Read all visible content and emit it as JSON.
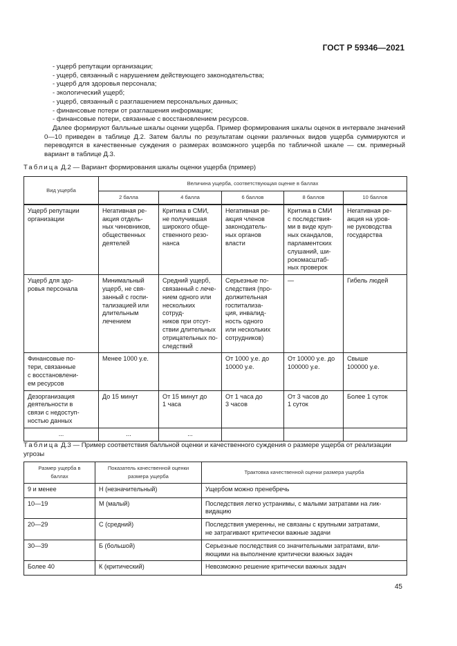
{
  "header": {
    "doc_id": "ГОСТ Р 59346—2021"
  },
  "bullets": [
    "- ущерб репутации организации;",
    "- ущерб, связанный с нарушением действующего законодательства;",
    "- ущерб для здоровья персонала;",
    "- экологический ущерб;",
    "- ущерб, связанный с разглашением персональных данных;",
    "- финансовые потери от разглашения информации;",
    "- финансовые потери, связанные с восстановлением ресурсов."
  ],
  "paragraph": "Далее формируют балльные шкалы оценки ущерба. Пример формирования шкалы оценок в интервале значений 0—10 приведен в таблице Д.2. Затем баллы по результатам оценки различных видов ущерба суммируются и переводятся в качественные суждения о размерах возможного ущерба по табличной шкале — см. примерный вариант в таблице Д.3.",
  "table_d2": {
    "caption_label": "Таблица",
    "caption_text": " Д.2 — Вариант формирования шкалы оценки ущерба (пример)",
    "col_type": "Вид ущерба",
    "group_header": "Величина ущерба, соответствующая оценке в баллах",
    "score_headers": [
      "2 балла",
      "4 балла",
      "6 баллов",
      "8 баллов",
      "10 баллов"
    ],
    "rows": [
      [
        "Ущерб репутации\nорганизации",
        "Негативная ре-\nакция отдель-\nных чиновников,\nобщественных\nдеятелей",
        "Критика в СМИ,\nне получившая\nширокого обще-\nственного резо-\nнанса",
        "Негативная ре-\nакция членов\nзаконодатель-\nных органов\nвласти",
        "Критика в СМИ\nс последствия-\nми в виде круп-\nных скандалов,\nпарламентских\nслушаний, ши-\nрокомасштаб-\nных проверок",
        "Негативная ре-\nакция на уров-\nне руководства\nгосударства"
      ],
      [
        "Ущерб для здо-\nровья персонала",
        "Минимальный\nущерб, не свя-\nзанный с госпи-\nтализацией или\nдлительным\nлечением",
        "Средний ущерб,\nсвязанный с лече-\nнием одного или\nнескольких сотруд-\nников при отсут-\nствии длительных\nотрицательных по-\nследствий",
        "Серьезные по-\nследствия (про-\nдолжительная\nгоспитализа-\nция, инвалид-\nность одного\nили нескольких\nсотрудников)",
        "—",
        "Гибель людей"
      ],
      [
        "Финансовые по-\nтери, связанные\nс восстановлени-\nем ресурсов",
        "Менее 1000 у.е.",
        "",
        "От 1000 у.е. до\n10000 у.е.",
        "От 10000 у.е. до\n100000 у.е.",
        "Свыше\n100000 у.е."
      ],
      [
        "Дезорганизация\nдеятельности в\nсвязи с недоступ-\nностью данных",
        "До 15 минут",
        "От 15 минут до\n1 часа",
        "От 1 часа до\n3 часов",
        "От 3 часов до\n1 суток",
        "Более 1 суток"
      ],
      [
        "...",
        "...",
        "...",
        "",
        "",
        ""
      ]
    ]
  },
  "table_d3": {
    "caption_label": "Таблица",
    "caption_text": " Д.3 — Пример соответствия балльной оценки и качественного суждения о размере ущерба от реализации угрозы",
    "headers": [
      "Размер ущерба в\nбаллах",
      "Показатель качественной оценки\nразмера ущерба",
      "Трактовка качественной оценки размера ущерба"
    ],
    "rows": [
      [
        "9 и менее",
        "Н (незначительный)",
        "Ущербом можно пренебречь"
      ],
      [
        "10—19",
        "М (малый)",
        "Последствия легко устранимы, с малыми затратами на лик-\nвидацию"
      ],
      [
        "20—29",
        "С (средний)",
        "Последствия умеренны, не связаны с крупными затратами,\nне затрагивают критически важные задачи"
      ],
      [
        "30—39",
        "Б (большой)",
        "Серьезные последствия со значительными затратами, вли-\nяющими на выполнение критически важных задач"
      ],
      [
        "Более 40",
        "К (критический)",
        "Невозможно решение критически важных задач"
      ]
    ]
  },
  "page_number": "45"
}
